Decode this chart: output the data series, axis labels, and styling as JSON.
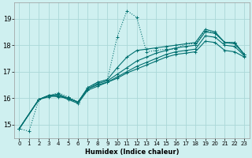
{
  "xlabel": "Humidex (Indice chaleur)",
  "ylabel": "",
  "bg_color": "#cff0f0",
  "grid_color": "#aad8d8",
  "line_color": "#007070",
  "xlim": [
    -0.5,
    23.5
  ],
  "ylim": [
    14.5,
    19.6
  ],
  "yticks": [
    15,
    16,
    17,
    18,
    19
  ],
  "xticks": [
    0,
    1,
    2,
    3,
    4,
    5,
    6,
    7,
    8,
    9,
    10,
    11,
    12,
    13,
    14,
    15,
    16,
    17,
    18,
    19,
    20,
    21,
    22,
    23
  ],
  "lines": [
    {
      "x": [
        0,
        1,
        2,
        3,
        4,
        5,
        6,
        7,
        8,
        9,
        10,
        11,
        12,
        13,
        14,
        15,
        16,
        17,
        18,
        19,
        20,
        21,
        22,
        23
      ],
      "y": [
        14.85,
        14.75,
        15.95,
        16.1,
        16.2,
        16.05,
        15.85,
        16.4,
        16.6,
        16.7,
        18.3,
        19.3,
        19.05,
        17.75,
        17.8,
        17.85,
        17.85,
        18.05,
        18.05,
        18.55,
        18.45,
        18.1,
        18.1,
        17.65
      ],
      "style": ":",
      "marker": "+"
    },
    {
      "x": [
        0,
        2,
        3,
        4,
        5,
        6,
        7,
        8,
        9,
        10,
        11,
        12,
        13,
        14,
        15,
        16,
        17,
        18,
        19,
        20,
        21,
        22,
        23
      ],
      "y": [
        14.85,
        15.95,
        16.1,
        16.05,
        16.0,
        15.85,
        16.35,
        16.5,
        16.6,
        16.75,
        16.95,
        17.1,
        17.25,
        17.4,
        17.55,
        17.65,
        17.7,
        17.75,
        18.15,
        18.1,
        17.8,
        17.75,
        17.55
      ],
      "style": "-",
      "marker": "+"
    },
    {
      "x": [
        0,
        2,
        3,
        4,
        5,
        6,
        7,
        8,
        9,
        10,
        11,
        12,
        13,
        14,
        15,
        16,
        17,
        18,
        19,
        20,
        21,
        22,
        23
      ],
      "y": [
        14.85,
        15.95,
        16.05,
        16.1,
        15.95,
        15.8,
        16.3,
        16.45,
        16.6,
        16.8,
        17.0,
        17.2,
        17.35,
        17.5,
        17.65,
        17.75,
        17.8,
        17.85,
        18.35,
        18.3,
        18.0,
        17.95,
        17.6
      ],
      "style": "-",
      "marker": "+"
    },
    {
      "x": [
        0,
        2,
        3,
        4,
        5,
        6,
        7,
        8,
        9,
        10,
        11,
        12,
        13,
        14,
        15,
        16,
        17,
        18,
        19,
        20,
        21,
        22,
        23
      ],
      "y": [
        14.85,
        15.95,
        16.1,
        16.1,
        16.0,
        15.85,
        16.35,
        16.55,
        16.65,
        16.9,
        17.15,
        17.4,
        17.55,
        17.7,
        17.8,
        17.9,
        17.95,
        18.0,
        18.5,
        18.45,
        18.1,
        18.05,
        17.65
      ],
      "style": "-",
      "marker": "+"
    },
    {
      "x": [
        0,
        2,
        3,
        4,
        5,
        6,
        7,
        8,
        9,
        10,
        11,
        12,
        13,
        14,
        15,
        16,
        17,
        18,
        19,
        20,
        21,
        22,
        23
      ],
      "y": [
        14.85,
        15.95,
        16.1,
        16.15,
        16.0,
        15.85,
        16.4,
        16.6,
        16.7,
        17.15,
        17.55,
        17.8,
        17.85,
        17.9,
        17.95,
        18.0,
        18.05,
        18.1,
        18.6,
        18.5,
        18.1,
        18.1,
        17.65
      ],
      "style": "-",
      "marker": "+"
    }
  ]
}
